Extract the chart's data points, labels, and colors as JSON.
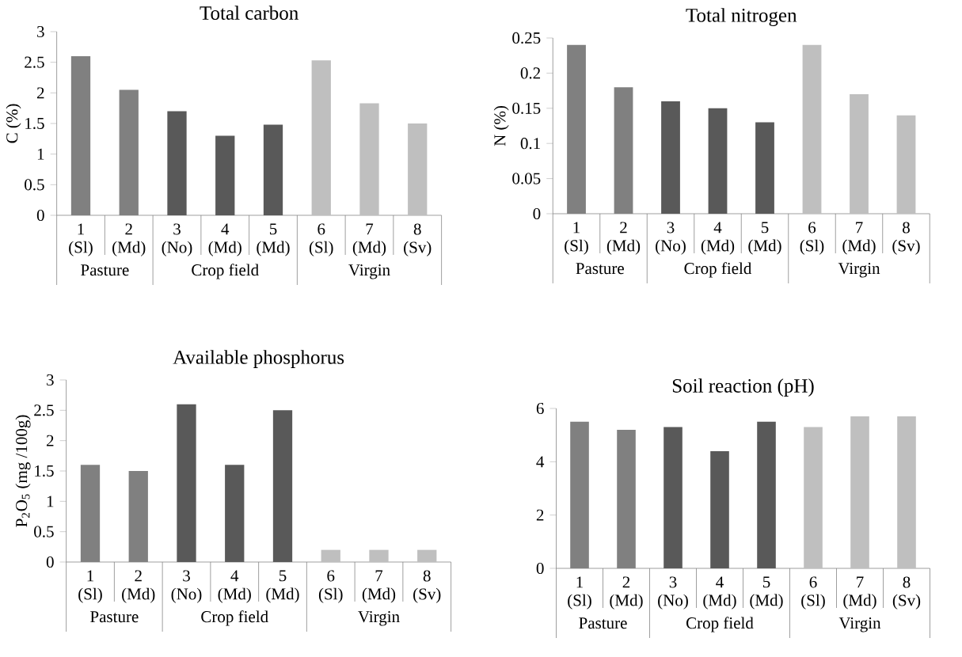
{
  "chart_data": [
    {
      "type": "bar",
      "title": "Total carbon",
      "ylabel": "C (%)",
      "categories": [
        "1 (Sl)",
        "2 (Md)",
        "3 (No)",
        "4 (Md)",
        "5 (Md)",
        "6 (Sl)",
        "7 (Md)",
        "8 (Sv)"
      ],
      "values": [
        2.6,
        2.05,
        1.7,
        1.3,
        1.48,
        2.53,
        1.83,
        1.5
      ],
      "colors": [
        "#808080",
        "#808080",
        "#595959",
        "#595959",
        "#595959",
        "#bfbfbf",
        "#bfbfbf",
        "#bfbfbf"
      ],
      "ylim": [
        0,
        3
      ],
      "yticks": [
        0,
        0.5,
        1,
        1.5,
        2,
        2.5,
        3
      ],
      "annotations": [
        "Pasture",
        "Crop field",
        "Virgin"
      ]
    },
    {
      "type": "bar",
      "title": "Total nitrogen",
      "ylabel": "N (%)",
      "categories": [
        "1 (Sl)",
        "2 (Md)",
        "3 (No)",
        "4 (Md)",
        "5 (Md)",
        "6 (Sl)",
        "7 (Md)",
        "8 (Sv)"
      ],
      "values": [
        0.24,
        0.18,
        0.16,
        0.15,
        0.13,
        0.24,
        0.17,
        0.14
      ],
      "colors": [
        "#808080",
        "#808080",
        "#595959",
        "#595959",
        "#595959",
        "#bfbfbf",
        "#bfbfbf",
        "#bfbfbf"
      ],
      "ylim": [
        0,
        0.25
      ],
      "yticks": [
        0,
        0.05,
        0.1,
        0.15,
        0.2,
        0.25
      ],
      "annotations": [
        "Pasture",
        "Crop field",
        "Virgin"
      ]
    },
    {
      "type": "bar",
      "title": "Available phosphorus",
      "ylabel": "P$_{2}$O$_{5}$  (mg /100g)",
      "categories": [
        "1 (Sl)",
        "2 (Md)",
        "3 (No)",
        "4 (Md)",
        "5 (Md)",
        "6 (Sl)",
        "7 (Md)",
        "8 (Sv)"
      ],
      "values": [
        1.6,
        1.5,
        2.6,
        1.6,
        2.5,
        0.2,
        0.2,
        0.2
      ],
      "colors": [
        "#808080",
        "#808080",
        "#595959",
        "#595959",
        "#595959",
        "#bfbfbf",
        "#bfbfbf",
        "#bfbfbf"
      ],
      "ylim": [
        0,
        3
      ],
      "yticks": [
        0,
        0.5,
        1,
        1.5,
        2,
        2.5,
        3
      ],
      "annotations": [
        "Pasture",
        "Crop field",
        "Virgin"
      ]
    },
    {
      "type": "bar",
      "title": "Soil reaction (pH)",
      "categories": [
        "1 (Sl)",
        "2 (Md)",
        "3 (No)",
        "4 (Md)",
        "5 (Md)",
        "6 (Sl)",
        "7 (Md)",
        "8 (Sv)"
      ],
      "values": [
        5.5,
        5.2,
        5.3,
        4.4,
        5.5,
        5.3,
        5.7,
        5.7
      ],
      "colors": [
        "#808080",
        "#808080",
        "#595959",
        "#595959",
        "#595959",
        "#bfbfbf",
        "#bfbfbf",
        "#bfbfbf"
      ],
      "ylim": [
        0,
        6
      ],
      "yticks": [
        0,
        2,
        4,
        6
      ],
      "annotations": [
        "Pasture",
        "Crop field",
        "Virgin"
      ]
    }
  ]
}
